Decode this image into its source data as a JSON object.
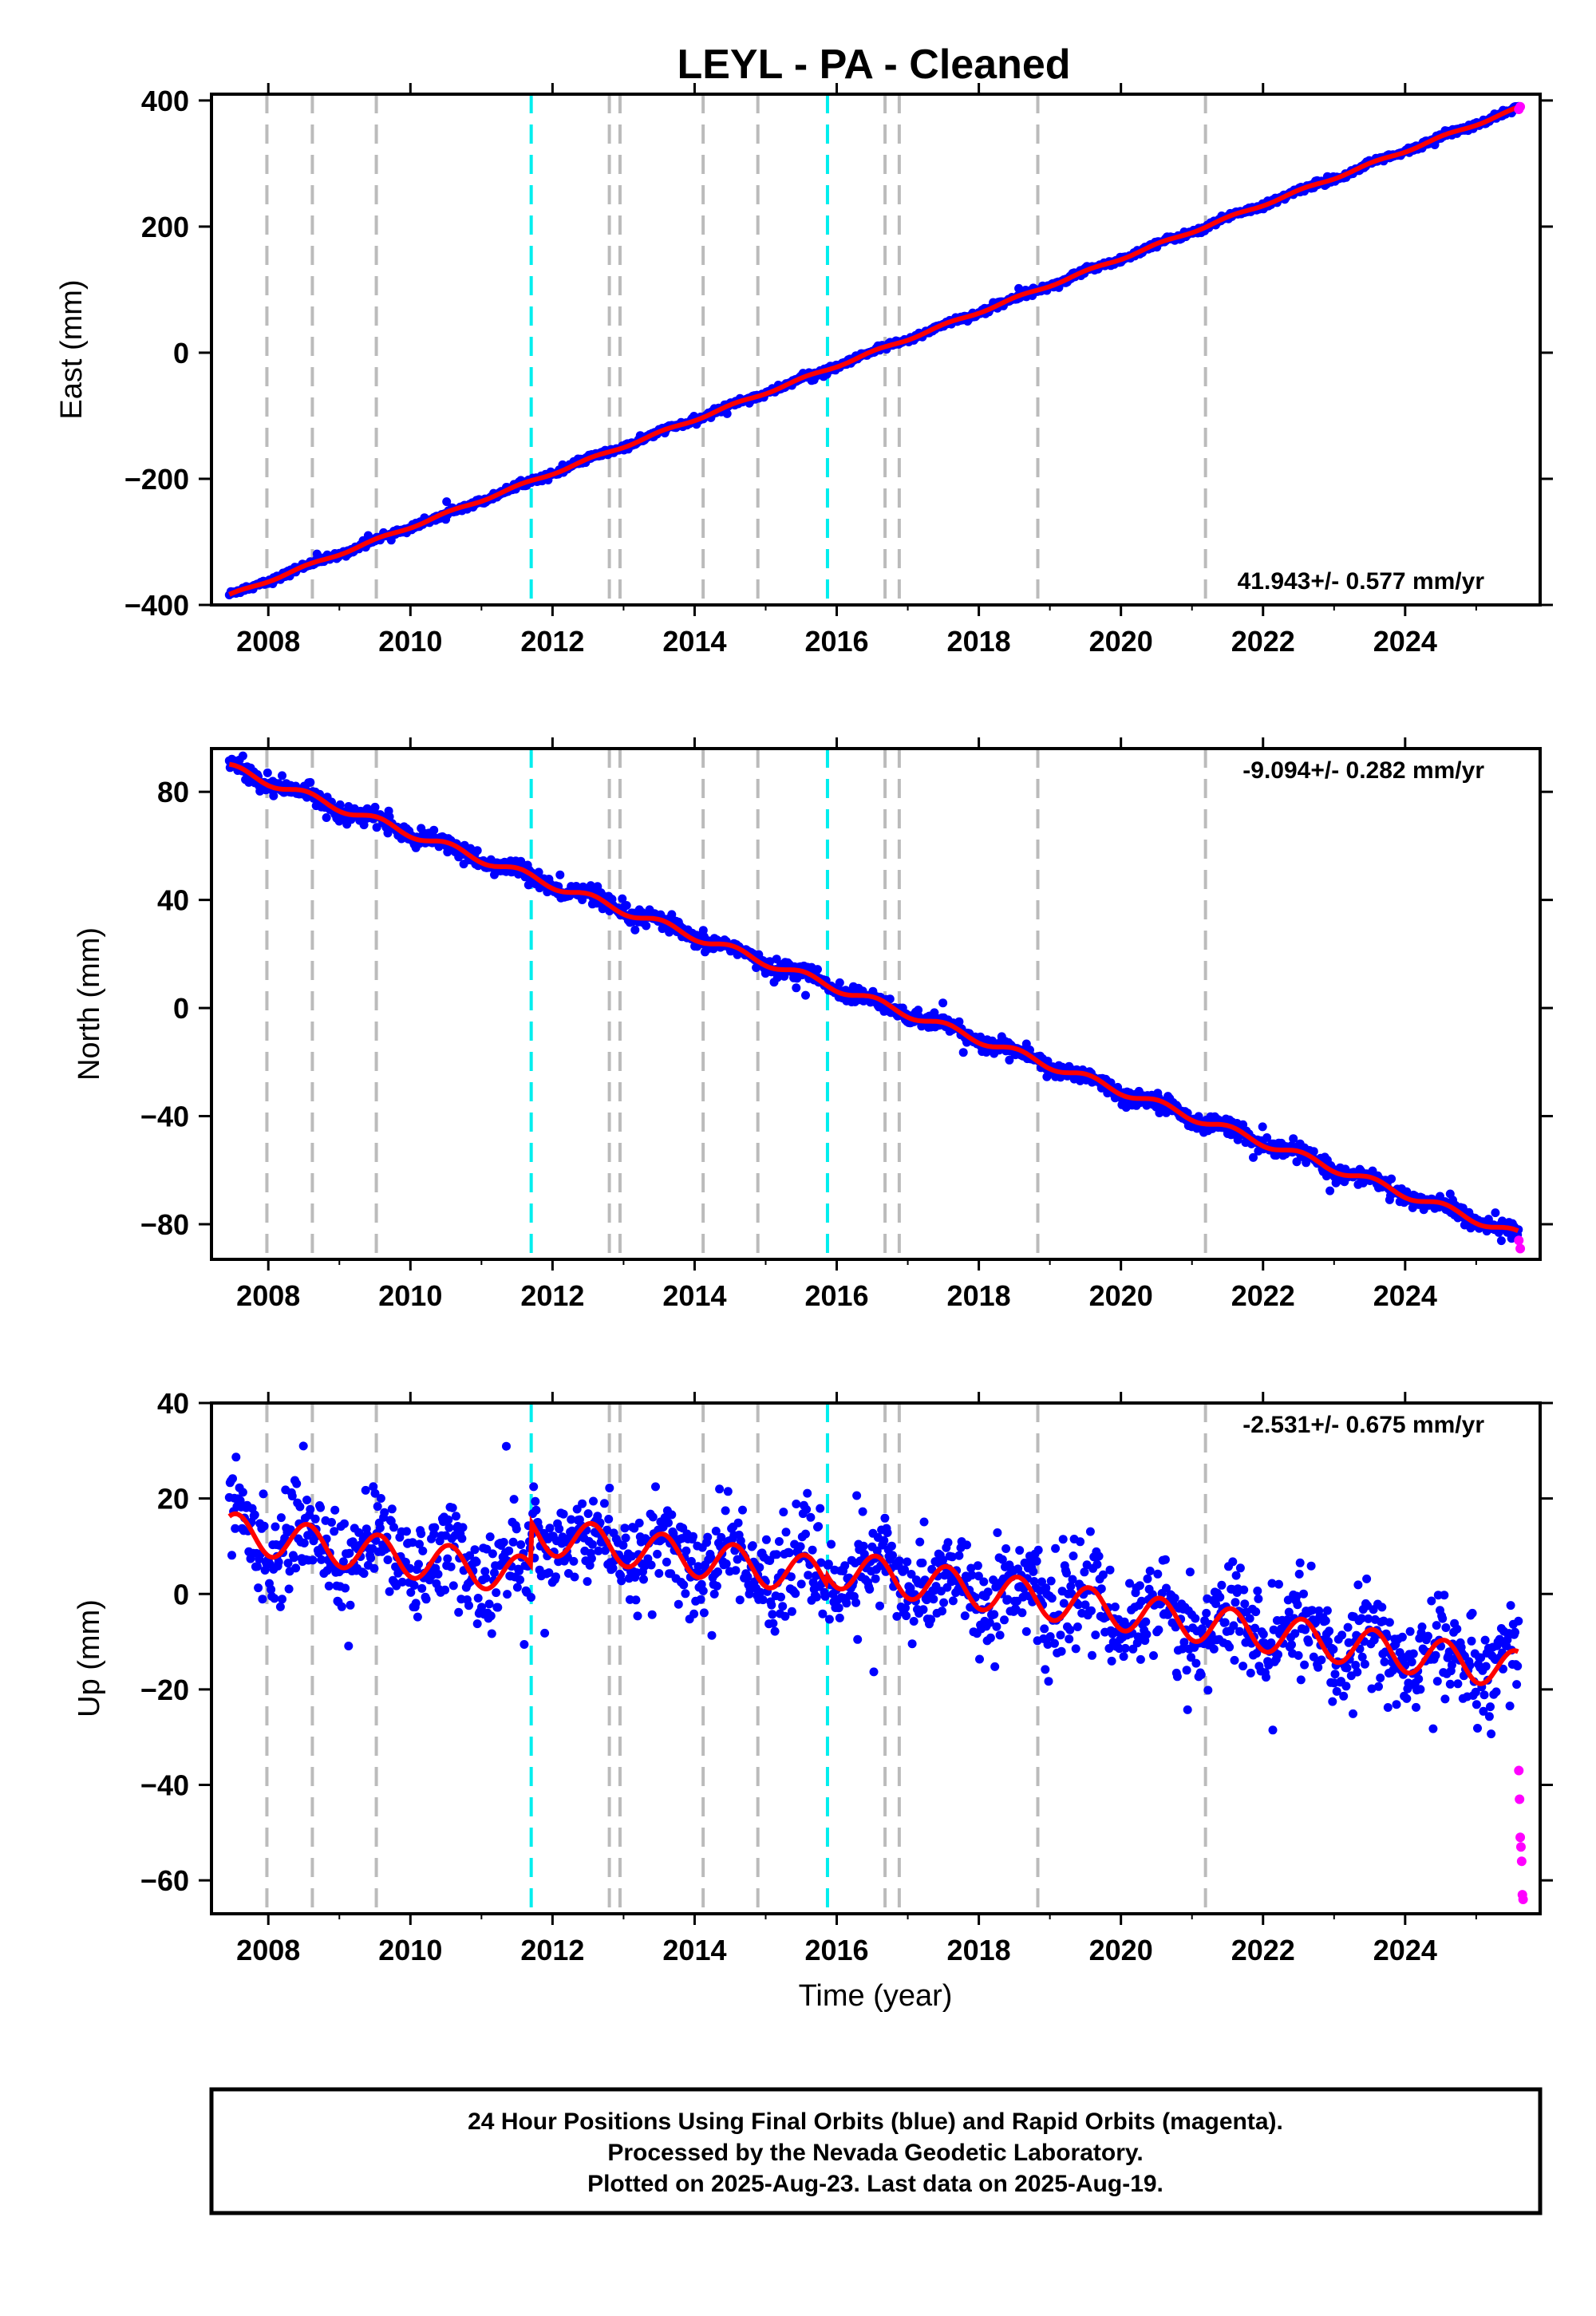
{
  "title": "LEYL  - PA - Cleaned",
  "colors": {
    "final_orbits": "#0000ff",
    "rapid_orbits": "#ff00ff",
    "model": "#ff0000",
    "equipment_change_line": "#bbbbbb",
    "earthquake_line": "#00eeee"
  },
  "footer": {
    "line1": "24 Hour Positions Using Final Orbits (blue) and Rapid Orbits (magenta).",
    "line2": "Processed by the Nevada Geodetic Laboratory.",
    "line3": "Plotted on 2025-Aug-23. Last data on 2025-Aug-19."
  },
  "chart_data": [
    {
      "type": "scatter",
      "panel": "east",
      "ylabel": "East (mm)",
      "xlabel": "",
      "rate_text": "41.943+/- 0.577 mm/yr",
      "rate_position": "bottom-right",
      "xlim": [
        2007.2,
        2025.9
      ],
      "ylim": [
        -400,
        410
      ],
      "xticks": [
        2008,
        2010,
        2012,
        2014,
        2016,
        2018,
        2020,
        2022,
        2024
      ],
      "yticks": [
        -400,
        -200,
        0,
        200,
        400
      ],
      "ytick_labels": [
        "−400",
        "−200",
        "0",
        "200",
        "400"
      ],
      "trend": {
        "start": [
          2007.45,
          -385
        ],
        "end": [
          2025.6,
          388
        ],
        "rate_mm_per_yr": 41.943
      },
      "scatter_noise_mm": 2.5,
      "seasonal_amplitude_mm": 2,
      "rapid_points": [
        [
          2025.6,
          386
        ],
        [
          2025.62,
          390
        ]
      ]
    },
    {
      "type": "scatter",
      "panel": "north",
      "ylabel": "North (mm)",
      "xlabel": "",
      "rate_text": "-9.094+/- 0.282 mm/yr",
      "rate_position": "top-right",
      "xlim": [
        2007.2,
        2025.9
      ],
      "ylim": [
        -93,
        96
      ],
      "xticks": [
        2008,
        2010,
        2012,
        2014,
        2016,
        2018,
        2020,
        2022,
        2024
      ],
      "yticks": [
        -80,
        -40,
        0,
        40,
        80
      ],
      "ytick_labels": [
        "−80",
        "−40",
        "0",
        "40",
        "80"
      ],
      "trend": {
        "start": [
          2007.45,
          89
        ],
        "end": [
          2025.6,
          -84
        ],
        "rate_mm_per_yr": -9.094
      },
      "scatter_noise_mm": 1.5,
      "seasonal_amplitude_mm": 1.5,
      "rapid_points": [
        [
          2025.6,
          -86
        ],
        [
          2025.62,
          -89
        ]
      ]
    },
    {
      "type": "scatter",
      "panel": "up",
      "ylabel": "Up (mm)",
      "xlabel": "Time (year)",
      "rate_text": "-2.531+/- 0.675 mm/yr",
      "rate_position": "top-right",
      "xlim": [
        2007.2,
        2025.9
      ],
      "ylim": [
        -67,
        40
      ],
      "xticks": [
        2008,
        2010,
        2012,
        2014,
        2016,
        2018,
        2020,
        2022,
        2024
      ],
      "yticks": [
        -60,
        -40,
        -20,
        0,
        20,
        40
      ],
      "ytick_labels": [
        "−60",
        "−40",
        "−20",
        "0",
        "20",
        "40"
      ],
      "trend": {
        "start": [
          2007.45,
          13
        ],
        "end": [
          2025.6,
          -27
        ],
        "rate_mm_per_yr": -2.531
      },
      "offsets": [
        [
          2011.7,
          9
        ],
        [
          2015.85,
          2
        ]
      ],
      "scatter_noise_mm": 5,
      "seasonal_amplitude_mm": 4,
      "rapid_points": [
        [
          2025.6,
          -37
        ],
        [
          2025.61,
          -43
        ],
        [
          2025.62,
          -51
        ],
        [
          2025.63,
          -53
        ],
        [
          2025.64,
          -56
        ],
        [
          2025.65,
          -63
        ],
        [
          2025.66,
          -64
        ]
      ]
    }
  ],
  "event_lines": {
    "equipment_changes": [
      2007.98,
      2008.62,
      2009.52,
      2012.8,
      2012.95,
      2014.12,
      2014.89,
      2016.68,
      2016.88,
      2018.83,
      2021.19
    ],
    "earthquakes": [
      2011.7,
      2015.87
    ]
  }
}
